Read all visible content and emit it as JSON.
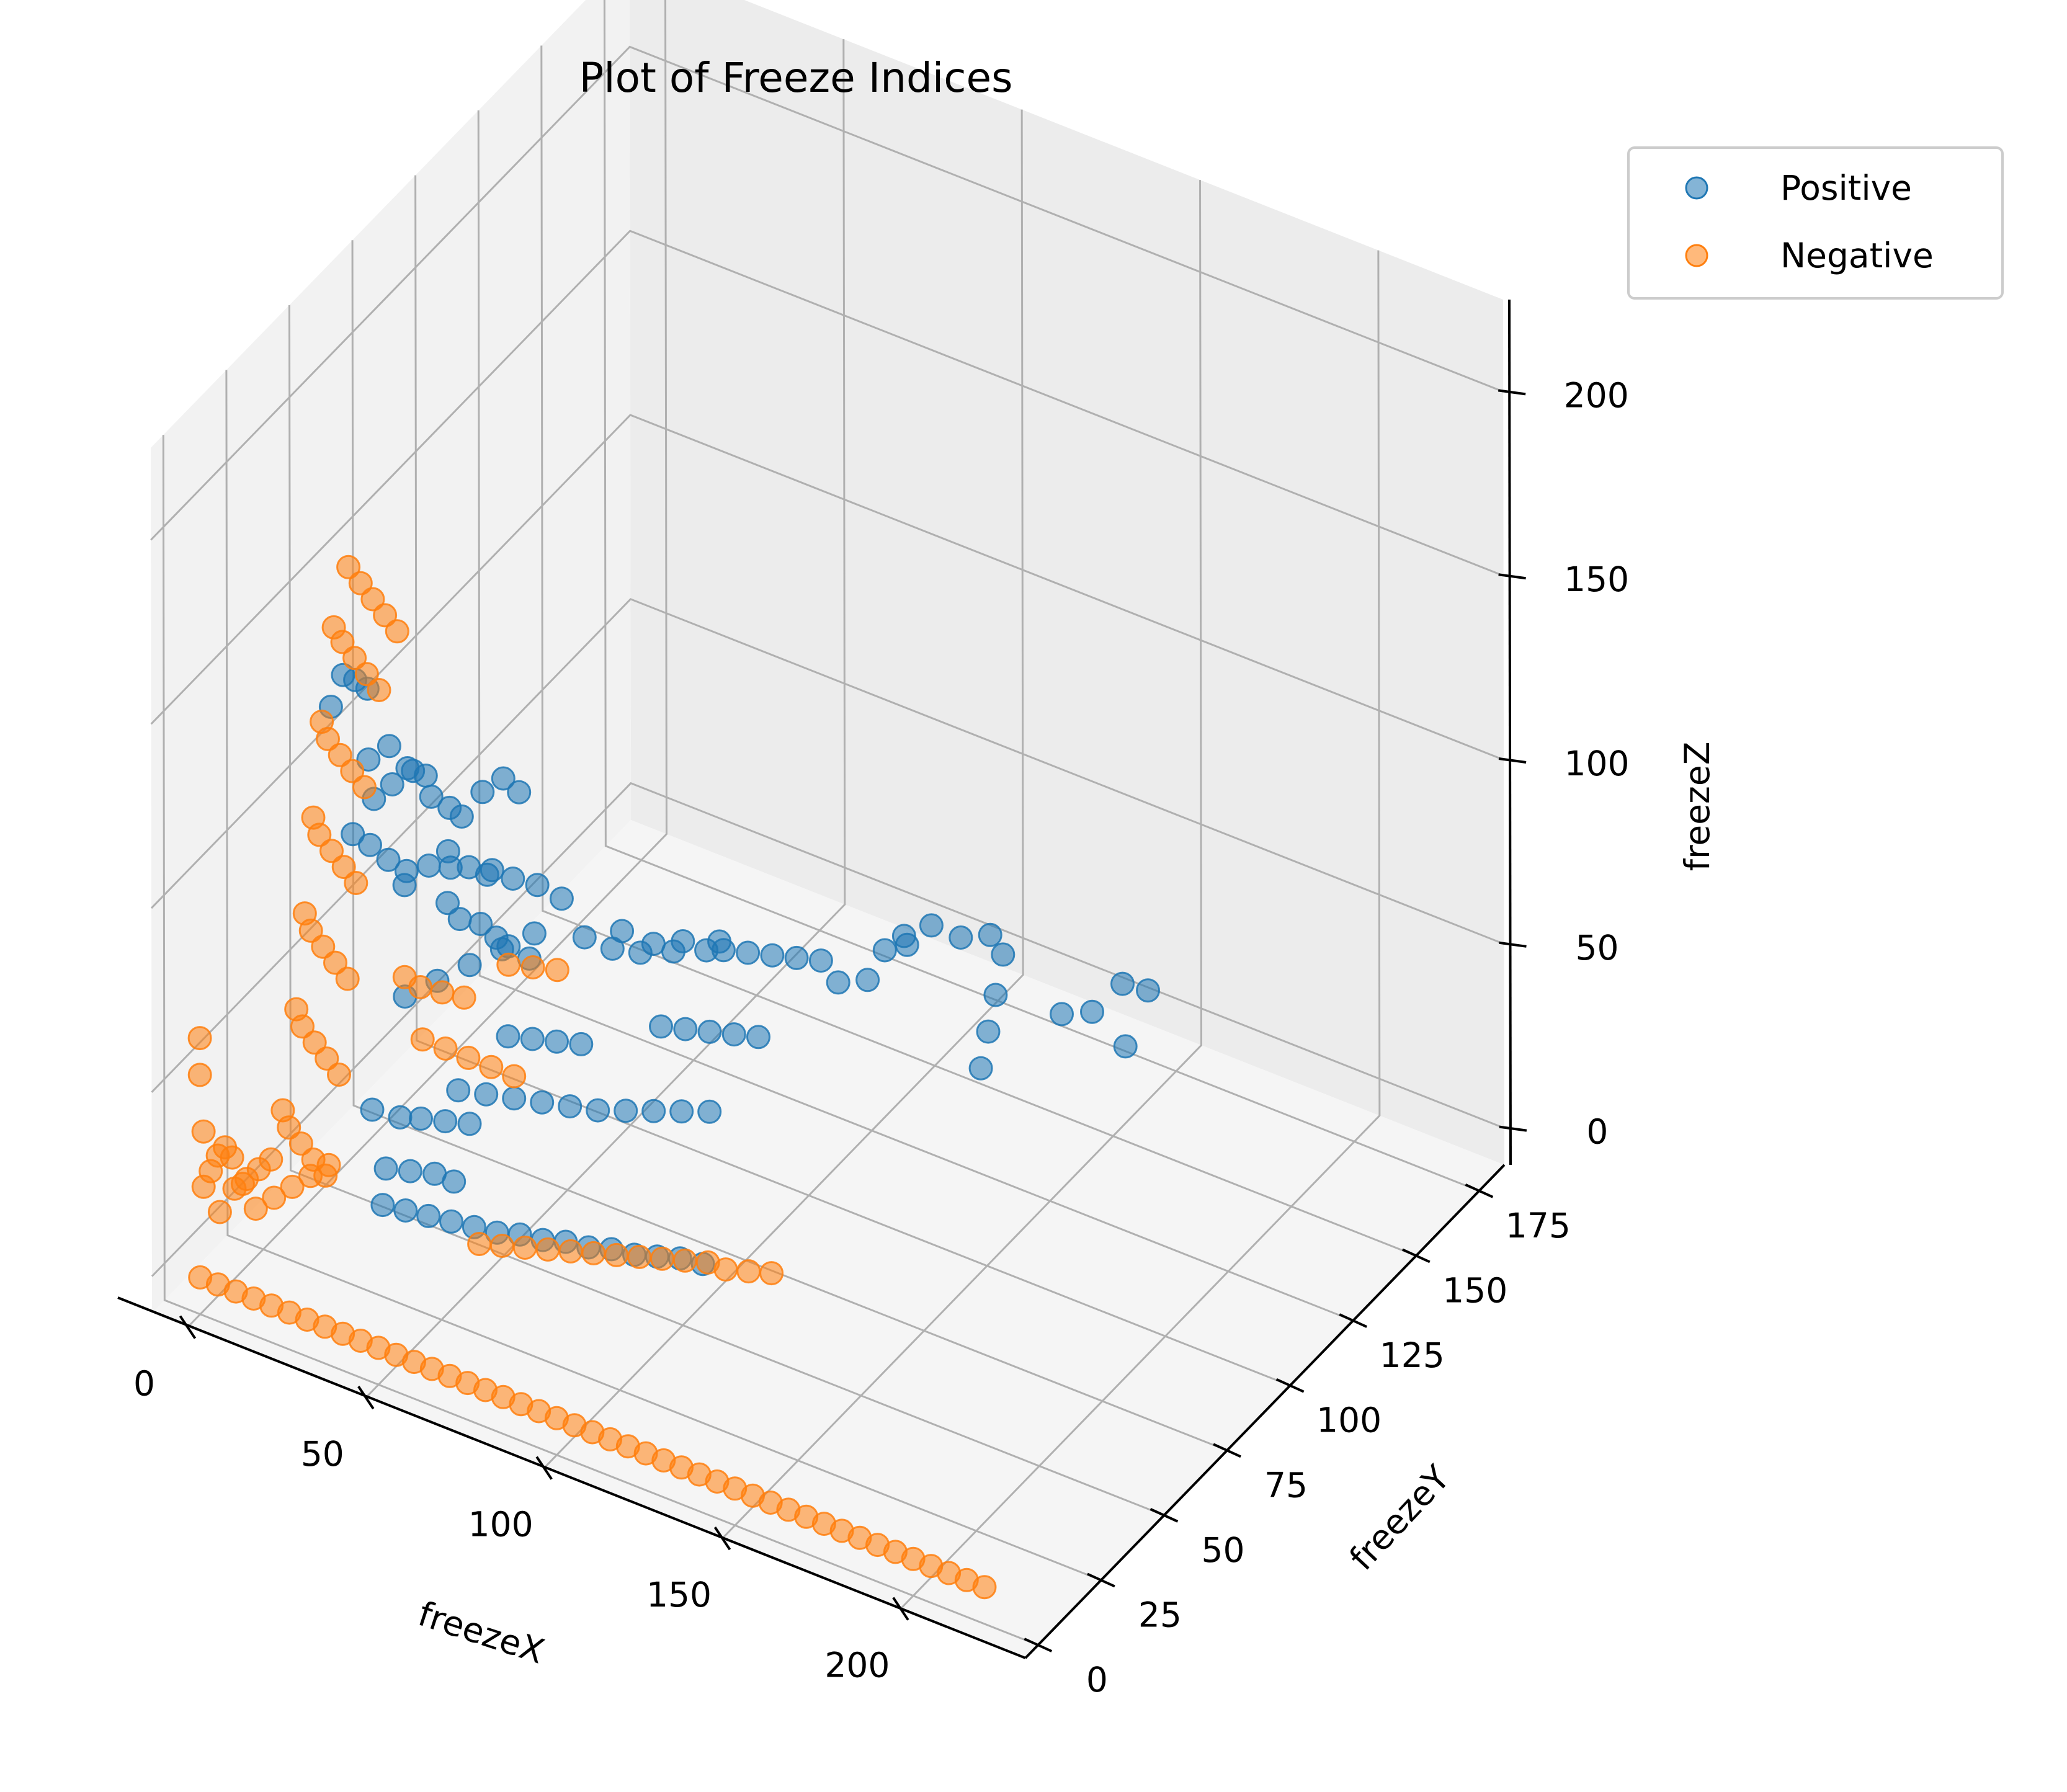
{
  "chart_data": {
    "type": "scatter",
    "title": "Plot of Freeze Indices",
    "xlabel": "freezeX",
    "ylabel": "freezeY",
    "zlabel": "freezeZ",
    "xlim": [
      -10,
      235
    ],
    "ylim": [
      -5,
      185
    ],
    "zlim": [
      -10,
      225
    ],
    "x_ticks": [
      "0",
      "50",
      "100",
      "150",
      "200"
    ],
    "y_ticks": [
      "0",
      "25",
      "50",
      "75",
      "100",
      "125",
      "150",
      "175"
    ],
    "z_ticks": [
      "0",
      "50",
      "100",
      "150",
      "200"
    ],
    "grid": true,
    "legend_position": "top-right",
    "series": [
      {
        "name": "Positive",
        "color": "#1f77b4",
        "points": [
          [
            12,
            40,
            140
          ],
          [
            14,
            42,
            138
          ],
          [
            10,
            38,
            132
          ],
          [
            16,
            44,
            135
          ],
          [
            20,
            70,
            60
          ],
          [
            22,
            72,
            55
          ],
          [
            25,
            76,
            52
          ],
          [
            28,
            78,
            48
          ],
          [
            30,
            80,
            45
          ],
          [
            33,
            84,
            40
          ],
          [
            18,
            74,
            66
          ],
          [
            24,
            82,
            62
          ],
          [
            27,
            86,
            58
          ],
          [
            31,
            90,
            55
          ],
          [
            35,
            94,
            50
          ],
          [
            15,
            60,
            70
          ],
          [
            19,
            64,
            74
          ],
          [
            23,
            66,
            78
          ],
          [
            26,
            70,
            72
          ],
          [
            29,
            73,
            69
          ],
          [
            40,
            96,
            40
          ],
          [
            45,
            100,
            36
          ],
          [
            50,
            104,
            34
          ],
          [
            55,
            110,
            32
          ],
          [
            60,
            116,
            30
          ],
          [
            62,
            120,
            28
          ],
          [
            66,
            124,
            26
          ],
          [
            70,
            128,
            24
          ],
          [
            74,
            132,
            22
          ],
          [
            78,
            136,
            20
          ],
          [
            42,
            108,
            34
          ],
          [
            48,
            112,
            30
          ],
          [
            52,
            118,
            28
          ],
          [
            58,
            124,
            26
          ],
          [
            88,
            156,
            14
          ],
          [
            92,
            160,
            18
          ],
          [
            96,
            166,
            12
          ],
          [
            100,
            172,
            10
          ],
          [
            105,
            170,
            8
          ],
          [
            110,
            160,
            6
          ],
          [
            115,
            150,
            5
          ],
          [
            120,
            140,
            4
          ],
          [
            125,
            165,
            3
          ],
          [
            130,
            170,
            2
          ],
          [
            135,
            175,
            8
          ],
          [
            140,
            178,
            6
          ],
          [
            145,
            162,
            4
          ],
          [
            80,
            140,
            12
          ],
          [
            84,
            146,
            10
          ],
          [
            86,
            150,
            16
          ],
          [
            90,
            152,
            20
          ],
          [
            60,
            98,
            22
          ],
          [
            64,
            102,
            20
          ],
          [
            68,
            106,
            18
          ],
          [
            72,
            110,
            16
          ],
          [
            76,
            114,
            14
          ],
          [
            30,
            60,
            20
          ],
          [
            35,
            64,
            18
          ],
          [
            40,
            68,
            16
          ],
          [
            45,
            72,
            14
          ],
          [
            50,
            76,
            12
          ],
          [
            55,
            80,
            10
          ],
          [
            60,
            84,
            9
          ],
          [
            65,
            88,
            8
          ],
          [
            70,
            92,
            7
          ],
          [
            75,
            96,
            6
          ],
          [
            20,
            40,
            25
          ],
          [
            25,
            44,
            22
          ],
          [
            28,
            48,
            20
          ],
          [
            32,
            52,
            18
          ],
          [
            36,
            56,
            16
          ],
          [
            30,
            30,
            10
          ],
          [
            35,
            32,
            9
          ],
          [
            40,
            34,
            8
          ],
          [
            45,
            36,
            7
          ],
          [
            50,
            38,
            6
          ],
          [
            55,
            40,
            5
          ],
          [
            60,
            42,
            5
          ],
          [
            65,
            44,
            4
          ],
          [
            70,
            46,
            4
          ],
          [
            75,
            48,
            3
          ],
          [
            80,
            50,
            3
          ],
          [
            85,
            52,
            2
          ],
          [
            90,
            54,
            2
          ],
          [
            95,
            56,
            2
          ],
          [
            100,
            58,
            1
          ],
          [
            38,
            20,
            30
          ],
          [
            42,
            24,
            28
          ],
          [
            46,
            28,
            26
          ],
          [
            50,
            30,
            24
          ],
          [
            44,
            60,
            40
          ],
          [
            48,
            64,
            38
          ],
          [
            52,
            68,
            36
          ],
          [
            56,
            72,
            34
          ],
          [
            10,
            55,
            95
          ],
          [
            13,
            58,
            98
          ],
          [
            16,
            62,
            100
          ],
          [
            19,
            65,
            92
          ],
          [
            22,
            68,
            88
          ],
          [
            12,
            50,
            110
          ],
          [
            15,
            54,
            112
          ],
          [
            18,
            57,
            105
          ],
          [
            21,
            60,
            102
          ],
          [
            9,
            48,
            90
          ],
          [
            11,
            52,
            85
          ],
          [
            14,
            55,
            80
          ],
          [
            17,
            58,
            76
          ],
          [
            24,
            70,
            85
          ],
          [
            27,
            74,
            90
          ],
          [
            30,
            78,
            92
          ],
          [
            33,
            80,
            88
          ],
          [
            8,
            70,
            30
          ],
          [
            10,
            80,
            28
          ],
          [
            12,
            90,
            26
          ],
          [
            14,
            100,
            24
          ],
          [
            16,
            110,
            22
          ]
        ]
      },
      {
        "name": "Negative",
        "color": "#ff7f0e",
        "points": [
          [
            10,
            45,
            165
          ],
          [
            12,
            47,
            160
          ],
          [
            14,
            49,
            155
          ],
          [
            16,
            51,
            150
          ],
          [
            18,
            53,
            145
          ],
          [
            8,
            42,
            150
          ],
          [
            9,
            44,
            145
          ],
          [
            11,
            46,
            140
          ],
          [
            13,
            48,
            135
          ],
          [
            15,
            50,
            130
          ],
          [
            6,
            40,
            125
          ],
          [
            7,
            41,
            120
          ],
          [
            9,
            43,
            115
          ],
          [
            11,
            45,
            110
          ],
          [
            13,
            47,
            105
          ],
          [
            5,
            38,
            100
          ],
          [
            6,
            39,
            95
          ],
          [
            8,
            41,
            90
          ],
          [
            10,
            43,
            85
          ],
          [
            12,
            45,
            80
          ],
          [
            4,
            36,
            75
          ],
          [
            5,
            37,
            70
          ],
          [
            7,
            39,
            65
          ],
          [
            9,
            41,
            60
          ],
          [
            11,
            43,
            55
          ],
          [
            3,
            34,
            50
          ],
          [
            4,
            35,
            45
          ],
          [
            6,
            37,
            40
          ],
          [
            8,
            39,
            35
          ],
          [
            10,
            41,
            30
          ],
          [
            2,
            30,
            25
          ],
          [
            3,
            31,
            20
          ],
          [
            5,
            33,
            15
          ],
          [
            7,
            35,
            10
          ],
          [
            9,
            37,
            5
          ],
          [
            1,
            0,
            25
          ],
          [
            1,
            0,
            40
          ],
          [
            0,
            0,
            55
          ],
          [
            0,
            0,
            65
          ],
          [
            3,
            0,
            30
          ],
          [
            5,
            0,
            35
          ],
          [
            7,
            0,
            38
          ],
          [
            9,
            0,
            36
          ],
          [
            12,
            0,
            30
          ],
          [
            2,
            5,
            15
          ],
          [
            4,
            8,
            20
          ],
          [
            6,
            10,
            22
          ],
          [
            8,
            12,
            24
          ],
          [
            10,
            14,
            26
          ],
          [
            5,
            15,
            10
          ],
          [
            8,
            18,
            12
          ],
          [
            11,
            21,
            14
          ],
          [
            14,
            24,
            16
          ],
          [
            17,
            27,
            18
          ],
          [
            0,
            0,
            0
          ],
          [
            5,
            0,
            0
          ],
          [
            10,
            0,
            0
          ],
          [
            15,
            0,
            0
          ],
          [
            20,
            0,
            0
          ],
          [
            25,
            0,
            0
          ],
          [
            30,
            0,
            0
          ],
          [
            35,
            0,
            0
          ],
          [
            40,
            0,
            0
          ],
          [
            45,
            0,
            0
          ],
          [
            50,
            0,
            0
          ],
          [
            55,
            0,
            0
          ],
          [
            60,
            0,
            0
          ],
          [
            65,
            0,
            0
          ],
          [
            70,
            0,
            0
          ],
          [
            75,
            0,
            0
          ],
          [
            80,
            0,
            0
          ],
          [
            85,
            0,
            0
          ],
          [
            90,
            0,
            0
          ],
          [
            95,
            0,
            0
          ],
          [
            100,
            0,
            0
          ],
          [
            105,
            0,
            0
          ],
          [
            110,
            0,
            0
          ],
          [
            115,
            0,
            0
          ],
          [
            120,
            0,
            0
          ],
          [
            125,
            0,
            0
          ],
          [
            130,
            0,
            0
          ],
          [
            135,
            0,
            0
          ],
          [
            140,
            0,
            0
          ],
          [
            145,
            0,
            0
          ],
          [
            150,
            0,
            0
          ],
          [
            155,
            0,
            0
          ],
          [
            160,
            0,
            0
          ],
          [
            165,
            0,
            0
          ],
          [
            170,
            0,
            0
          ],
          [
            175,
            0,
            0
          ],
          [
            180,
            0,
            0
          ],
          [
            185,
            0,
            0
          ],
          [
            190,
            0,
            0
          ],
          [
            195,
            0,
            0
          ],
          [
            200,
            0,
            0
          ],
          [
            205,
            0,
            0
          ],
          [
            210,
            0,
            0
          ],
          [
            215,
            0,
            0
          ],
          [
            220,
            0,
            0
          ],
          [
            50,
            40,
            0
          ],
          [
            55,
            42,
            0
          ],
          [
            60,
            44,
            0
          ],
          [
            65,
            46,
            0
          ],
          [
            70,
            48,
            0
          ],
          [
            75,
            50,
            0
          ],
          [
            80,
            52,
            0
          ],
          [
            85,
            54,
            0
          ],
          [
            90,
            56,
            0
          ],
          [
            95,
            58,
            0
          ],
          [
            100,
            60,
            0
          ],
          [
            105,
            60,
            0
          ],
          [
            110,
            62,
            0
          ],
          [
            115,
            64,
            0
          ],
          [
            20,
            60,
            30
          ],
          [
            25,
            62,
            28
          ],
          [
            30,
            64,
            26
          ],
          [
            35,
            66,
            24
          ],
          [
            40,
            68,
            22
          ],
          [
            15,
            60,
            45
          ],
          [
            18,
            62,
            42
          ],
          [
            22,
            65,
            40
          ],
          [
            26,
            68,
            38
          ],
          [
            30,
            80,
            40
          ],
          [
            34,
            84,
            38
          ],
          [
            38,
            88,
            36
          ]
        ]
      }
    ]
  }
}
